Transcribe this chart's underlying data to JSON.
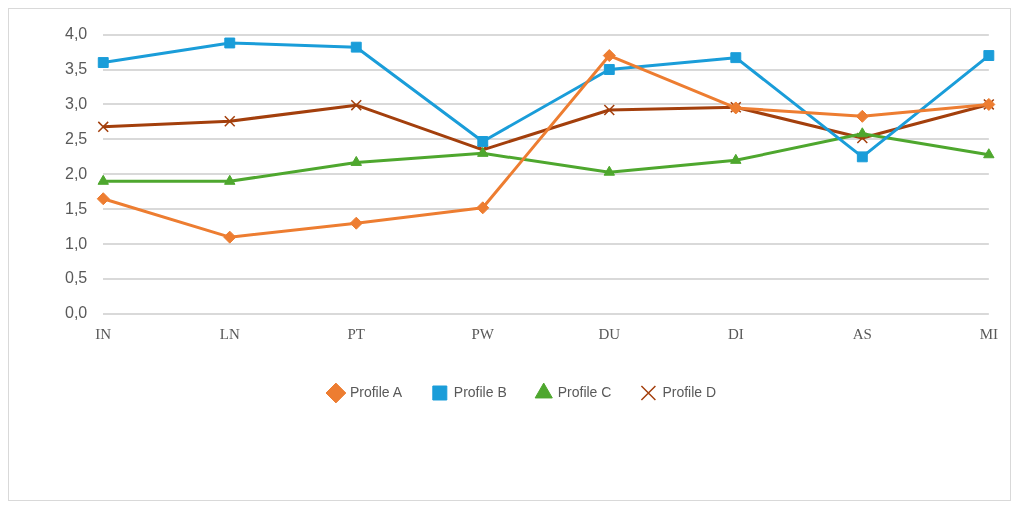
{
  "chart_data": {
    "type": "line",
    "categories": [
      "IN",
      "LN",
      "PT",
      "PW",
      "DU",
      "DI",
      "AS",
      "MI"
    ],
    "series": [
      {
        "name": "Profile A",
        "color": "#ed7d31",
        "marker": "diamond",
        "values": [
          1.65,
          1.1,
          1.3,
          1.52,
          3.7,
          2.95,
          2.83,
          3.0
        ]
      },
      {
        "name": "Profile B",
        "color": "#1a9dd9",
        "marker": "square",
        "values": [
          3.6,
          3.88,
          3.82,
          2.47,
          3.5,
          3.67,
          2.25,
          3.7
        ]
      },
      {
        "name": "Profile C",
        "color": "#4ea72e",
        "marker": "triangle",
        "values": [
          1.9,
          1.9,
          2.17,
          2.3,
          2.03,
          2.2,
          2.58,
          2.28
        ]
      },
      {
        "name": "Profile D",
        "color": "#a33f0c",
        "marker": "cross",
        "values": [
          2.68,
          2.76,
          2.99,
          2.35,
          2.92,
          2.96,
          2.52,
          3.0
        ]
      }
    ],
    "ylim": [
      0,
      4
    ],
    "yticks": [
      {
        "value": 0,
        "label": "0,0"
      },
      {
        "value": 0.5,
        "label": "0,5"
      },
      {
        "value": 1,
        "label": "1,0"
      },
      {
        "value": 1.5,
        "label": "1,5"
      },
      {
        "value": 2,
        "label": "2,0"
      },
      {
        "value": 2.5,
        "label": "2,5"
      },
      {
        "value": 3,
        "label": "3,0"
      },
      {
        "value": 3.5,
        "label": "3,5"
      },
      {
        "value": 4,
        "label": "4,0"
      }
    ],
    "grid": "y",
    "legend": "bottom"
  }
}
